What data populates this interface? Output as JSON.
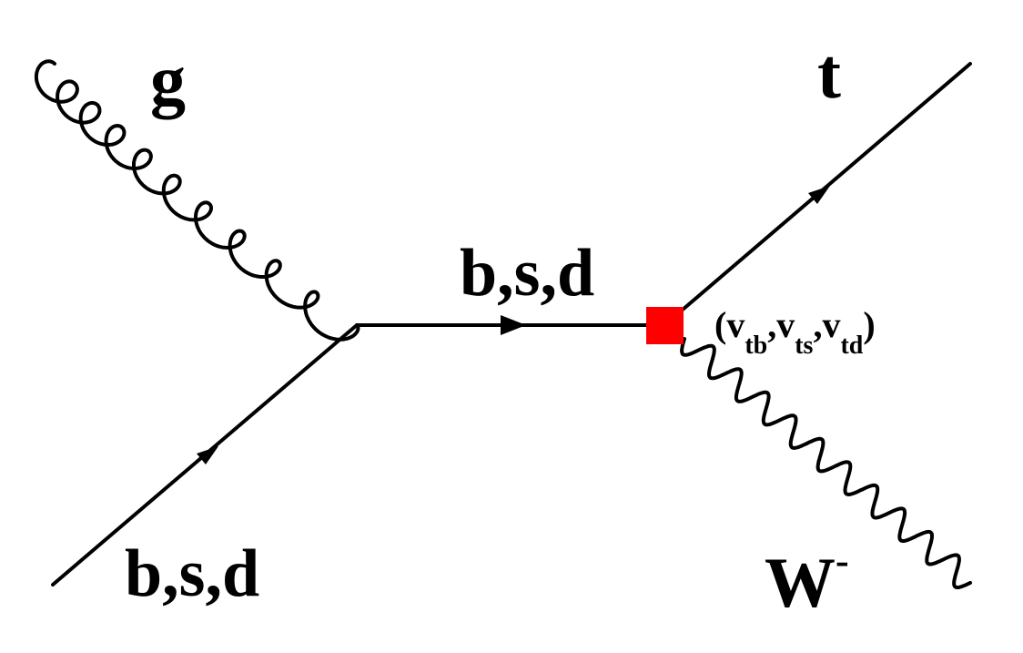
{
  "diagram": {
    "labels": {
      "gluon": "g",
      "incoming_quark": "b,s,d",
      "internal_quark": "b,s,d",
      "top_quark": "t",
      "w_boson": "W",
      "w_charge": "-"
    },
    "coupling": {
      "open_paren": "(",
      "close_paren": ")",
      "comma": ",",
      "v1": "v",
      "v1_sub": "tb",
      "v2": "v",
      "v2_sub": "ts",
      "v3": "v",
      "v3_sub": "td"
    },
    "colors": {
      "lines": "#000000",
      "vertex_marker": "#ff0000",
      "background": "#ffffff"
    }
  }
}
